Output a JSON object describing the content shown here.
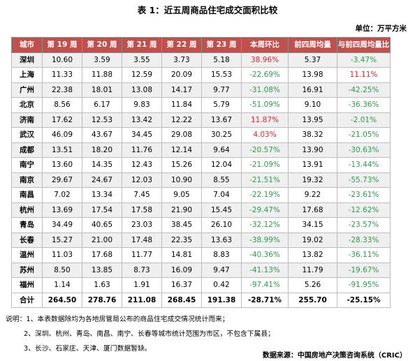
{
  "title": "表 1：近五周商品住宅成交面积比较",
  "unit": "单位：万平方米",
  "table": {
    "headers": [
      "城市",
      "第 19 周",
      "第 20 周",
      "第 21 周",
      "第 22 周",
      "第 23 周",
      "本周环比",
      "前四周均量",
      "与前四周均量比"
    ],
    "rows": [
      [
        "深圳",
        "10.60",
        "3.59",
        "3.55",
        "3.73",
        "5.18",
        "38.96%",
        "5.37",
        "-3.47%"
      ],
      [
        "上海",
        "11.33",
        "11.88",
        "12.59",
        "20.09",
        "15.53",
        "-22.69%",
        "13.98",
        "11.11%"
      ],
      [
        "广州",
        "22.38",
        "18.01",
        "13.08",
        "14.17",
        "9.77",
        "-31.08%",
        "16.91",
        "-42.25%"
      ],
      [
        "北京",
        "8.56",
        "6.17",
        "9.83",
        "11.84",
        "5.79",
        "-51.09%",
        "9.10",
        "-36.36%"
      ],
      [
        "济南",
        "17.62",
        "12.53",
        "13.42",
        "12.22",
        "13.67",
        "11.87%",
        "13.95",
        "-2.01%"
      ],
      [
        "武汉",
        "46.09",
        "43.67",
        "34.45",
        "29.08",
        "30.25",
        "4.03%",
        "38.32",
        "-21.05%"
      ],
      [
        "成都",
        "13.51",
        "18.20",
        "11.76",
        "12.14",
        "9.64",
        "-20.57%",
        "13.90",
        "-30.63%"
      ],
      [
        "南宁",
        "13.60",
        "14.35",
        "12.43",
        "15.26",
        "12.04",
        "-21.09%",
        "13.91",
        "-13.44%"
      ],
      [
        "南京",
        "29.67",
        "24.67",
        "12.03",
        "10.90",
        "8.55",
        "-21.51%",
        "19.32",
        "-55.73%"
      ],
      [
        "南昌",
        "7.02",
        "13.34",
        "7.45",
        "9.05",
        "7.04",
        "-22.19%",
        "9.22",
        "-23.61%"
      ],
      [
        "杭州",
        "13.69",
        "17.54",
        "17.58",
        "21.90",
        "15.45",
        "-29.47%",
        "17.68",
        "-12.62%"
      ],
      [
        "青岛",
        "34.49",
        "40.65",
        "23.03",
        "38.45",
        "26.10",
        "-32.12%",
        "34.15",
        "-23.57%"
      ],
      [
        "长春",
        "15.27",
        "21.00",
        "17.48",
        "22.35",
        "13.63",
        "-38.99%",
        "19.02",
        "-28.33%"
      ],
      [
        "温州",
        "11.03",
        "17.68",
        "11.77",
        "14.81",
        "8.83",
        "-40.36%",
        "13.82",
        "-36.11%"
      ],
      [
        "苏州",
        "8.50",
        "13.85",
        "8.73",
        "16.09",
        "9.47",
        "-41.13%",
        "11.79",
        "-19.67%"
      ],
      [
        "福州",
        "1.14",
        "1.63",
        "1.91",
        "16.37",
        "0.42",
        "-97.41%",
        "5.26",
        "-91.95%"
      ],
      [
        "合计",
        "264.50",
        "278.76",
        "211.08",
        "268.45",
        "191.38",
        "-28.71%",
        "255.70",
        "-25.15%"
      ]
    ]
  },
  "notes": [
    "说明：1、本表数据除均为各地房管局公布的商品住宅成交情况统计而来；",
    "2、深圳、杭州、青岛、南昌、南宁、长春等城市统计范围为市区，不包含下属县；",
    "3、长沙、石家庄、天津、厦门数据暂缺。"
  ],
  "source": "数据来源：中国房地产决策咨询系统（CRIC）",
  "colors": {
    "header_bg": "#c0504d",
    "negative": "#2e9b4b",
    "positive": "#e0232d"
  }
}
